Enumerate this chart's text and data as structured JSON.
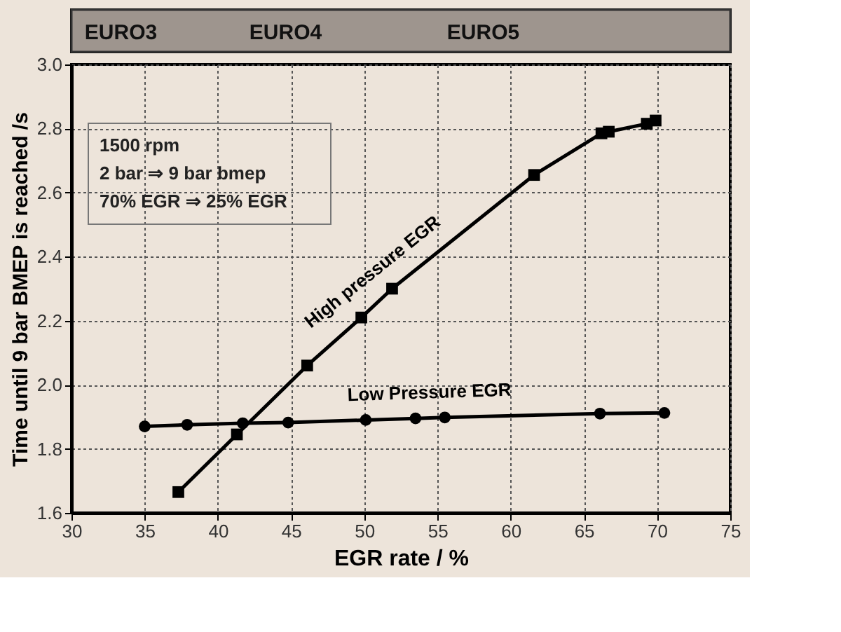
{
  "chart_data": {
    "type": "line",
    "xlabel": "EGR rate / %",
    "ylabel": "Time until 9 bar BMEP is reached /s",
    "xlim": [
      30,
      75
    ],
    "xticks": [
      30,
      35,
      40,
      45,
      50,
      55,
      60,
      65,
      70,
      75
    ],
    "ylim": [
      1.6,
      3.0
    ],
    "yticks": [
      1.6,
      1.8,
      {
        "value": 2.0,
        "label": "2.0"
      },
      2.2,
      2.4,
      2.6,
      2.8,
      {
        "value": 3.0,
        "label": "3.0"
      }
    ],
    "grid": true,
    "legend": false,
    "line_style": "solid",
    "annotations": [
      "EURO3",
      "EURO4",
      "EURO5",
      "1500 rpm",
      "2 bar ⇒ 9 bar bmep",
      "70% EGR ⇒ 25% EGR"
    ],
    "series": [
      {
        "name": "High pressure EGR",
        "color": "#000000",
        "marker": "square",
        "x": [
          37.3,
          41.3,
          46.1,
          49.8,
          51.9,
          61.6,
          66.2,
          66.7,
          69.3,
          69.9
        ],
        "values": [
          1.665,
          1.845,
          2.06,
          2.21,
          2.3,
          2.655,
          2.785,
          2.79,
          2.815,
          2.825
        ]
      },
      {
        "name": "Low Pressure EGR",
        "color": "#000000",
        "marker": "circle",
        "x": [
          35.0,
          37.9,
          41.7,
          44.8,
          50.1,
          53.5,
          55.5,
          66.1,
          70.5
        ],
        "values": [
          1.87,
          1.875,
          1.88,
          1.882,
          1.89,
          1.895,
          1.898,
          1.91,
          1.912
        ]
      }
    ]
  }
}
